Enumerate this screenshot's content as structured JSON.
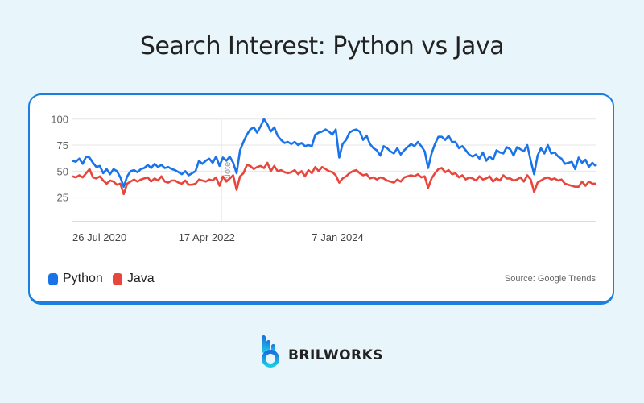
{
  "title": "Search Interest: Python vs Java",
  "legend": {
    "python": {
      "label": "Python",
      "color": "#1a73e8"
    },
    "java": {
      "label": "Java",
      "color": "#e8453c"
    }
  },
  "source": "Source: Google Trends",
  "brand": {
    "name": "BRILWORKS",
    "logo_icon": "brilworks-hand-logo"
  },
  "chart_data": {
    "type": "line",
    "title": "Search Interest: Python vs Java",
    "xlabel": "",
    "ylabel": "",
    "ylim": [
      0,
      100
    ],
    "yticks": [
      25,
      50,
      75,
      100
    ],
    "xtick_labels": [
      {
        "label": "26 Jul 2020",
        "index": 0
      },
      {
        "label": "17 Apr 2022",
        "index": 31
      },
      {
        "label": "7 Jan 2024",
        "index": 70
      }
    ],
    "annotations": [
      {
        "label": "Note",
        "index": 31
      }
    ],
    "grid": true,
    "legend_position": "bottom-left",
    "series": [
      {
        "name": "Python",
        "color": "#1a73e8",
        "values": [
          60,
          59,
          62,
          57,
          64,
          63,
          58,
          54,
          55,
          48,
          52,
          47,
          52,
          50,
          44,
          35,
          45,
          50,
          51,
          49,
          52,
          53,
          56,
          53,
          57,
          54,
          56,
          53,
          54,
          52,
          51,
          49,
          47,
          50,
          46,
          48,
          50,
          60,
          57,
          60,
          62,
          58,
          64,
          55,
          63,
          60,
          64,
          58,
          48,
          70,
          78,
          85,
          90,
          92,
          87,
          93,
          100,
          95,
          88,
          92,
          84,
          80,
          77,
          78,
          76,
          78,
          75,
          77,
          74,
          75,
          74,
          85,
          87,
          88,
          90,
          88,
          85,
          90,
          63,
          76,
          80,
          87,
          89,
          90,
          88,
          80,
          84,
          76,
          72,
          70,
          65,
          74,
          72,
          69,
          67,
          72,
          66,
          70,
          73,
          76,
          74,
          78,
          74,
          69,
          53,
          67,
          76,
          83,
          83,
          80,
          84,
          78,
          78,
          72,
          74,
          70,
          66,
          64,
          66,
          62,
          68,
          60,
          64,
          61,
          70,
          68,
          67,
          73,
          71,
          65,
          73,
          71,
          69,
          75,
          60,
          47,
          65,
          72,
          67,
          75,
          67,
          68,
          64,
          62,
          57,
          58,
          59,
          52,
          63,
          58,
          61,
          54,
          58,
          55
        ]
      },
      {
        "name": "Java",
        "color": "#e8453c",
        "values": [
          45,
          44,
          46,
          44,
          48,
          52,
          44,
          43,
          45,
          41,
          38,
          41,
          40,
          37,
          38,
          28,
          38,
          40,
          42,
          40,
          42,
          43,
          44,
          40,
          43,
          41,
          45,
          40,
          39,
          41,
          41,
          39,
          38,
          41,
          37,
          37,
          38,
          42,
          41,
          40,
          42,
          41,
          44,
          36,
          45,
          40,
          43,
          46,
          32,
          45,
          48,
          56,
          55,
          52,
          54,
          55,
          53,
          58,
          50,
          55,
          50,
          51,
          49,
          48,
          49,
          51,
          47,
          50,
          45,
          51,
          48,
          54,
          50,
          54,
          52,
          50,
          49,
          46,
          39,
          43,
          45,
          48,
          50,
          51,
          48,
          46,
          47,
          43,
          44,
          42,
          44,
          43,
          41,
          40,
          39,
          42,
          40,
          44,
          45,
          46,
          45,
          47,
          44,
          45,
          34,
          43,
          48,
          52,
          53,
          49,
          51,
          47,
          48,
          44,
          46,
          42,
          44,
          43,
          41,
          45,
          42,
          43,
          45,
          40,
          43,
          41,
          46,
          43,
          43,
          41,
          42,
          44,
          40,
          46,
          42,
          30,
          39,
          41,
          43,
          44,
          42,
          43,
          41,
          42,
          38,
          37,
          36,
          35,
          35,
          40,
          36,
          40,
          38,
          38
        ]
      }
    ]
  }
}
